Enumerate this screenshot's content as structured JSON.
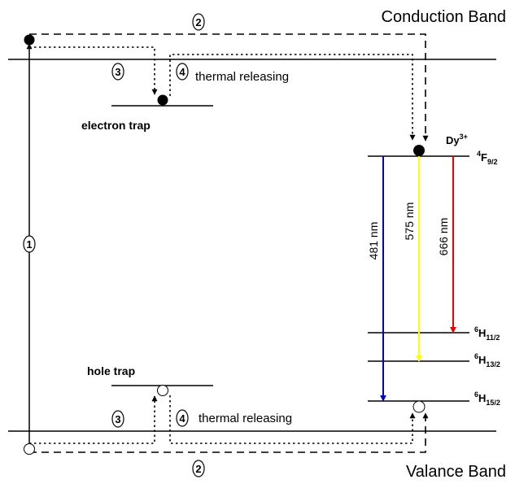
{
  "bands": {
    "conduction": "Conduction Band",
    "valence": "Valance Band"
  },
  "traps": {
    "electron": "electron trap",
    "hole": "hole trap",
    "thermal_releasing": "thermal releasing"
  },
  "ion": {
    "name": "Dy",
    "charge": "3+"
  },
  "levels": [
    {
      "sup": "4",
      "letter": "F",
      "sub": "9/2"
    },
    {
      "sup": "6",
      "letter": "H",
      "sub": "11/2"
    },
    {
      "sup": "6",
      "letter": "H",
      "sub": "13/2"
    },
    {
      "sup": "6",
      "letter": "H",
      "sub": "15/2"
    }
  ],
  "emissions": [
    {
      "label": "481 nm",
      "color": "#0000cc"
    },
    {
      "label": "575 nm",
      "color": "#ffff00"
    },
    {
      "label": "666 nm",
      "color": "#ee0000"
    }
  ],
  "steps": [
    "1",
    "2",
    "3",
    "4"
  ]
}
